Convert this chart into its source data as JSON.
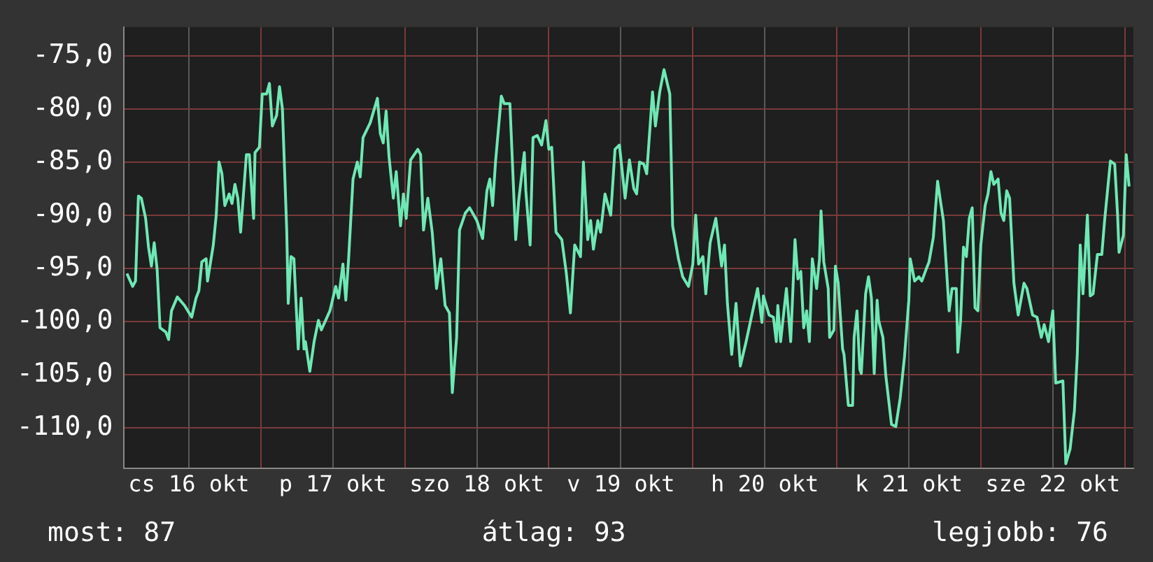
{
  "chart_data": {
    "type": "line",
    "legend": false,
    "grid": true,
    "marker": "none",
    "line_style": "solid",
    "xlim": [
      "--10-16T01:12",
      "--10-23T01:26"
    ],
    "ylim": [
      -113.8,
      -72.3
    ],
    "xticks": [
      {
        "value": "--10-17T00:00",
        "label": null
      },
      {
        "value": "--10-18T00:00",
        "label": null
      },
      {
        "value": "--10-19T00:00",
        "label": null
      },
      {
        "value": "--10-20T00:00",
        "label": null
      },
      {
        "value": "--10-21T00:00",
        "label": null
      },
      {
        "value": "--10-22T00:00",
        "label": null
      },
      {
        "value": "--10-23T00:00",
        "label": null
      },
      {
        "value": "--10-16T12:00",
        "label": "cs 16 okt"
      },
      {
        "value": "--10-17T12:00",
        "label": "p 17 okt"
      },
      {
        "value": "--10-18T12:00",
        "label": "szo 18 okt"
      },
      {
        "value": "--10-19T12:00",
        "label": "v 19 okt"
      },
      {
        "value": "--10-20T12:00",
        "label": "h 20 okt"
      },
      {
        "value": "--10-21T12:00",
        "label": "k 21 okt"
      },
      {
        "value": "--10-22T12:00",
        "label": "sze 22 okt"
      }
    ],
    "yticks": [
      {
        "value": -75,
        "label": "-75,0"
      },
      {
        "value": -80,
        "label": "-80,0"
      },
      {
        "value": -85,
        "label": "-85,0"
      },
      {
        "value": -90,
        "label": "-90,0"
      },
      {
        "value": -95,
        "label": "-95,0"
      },
      {
        "value": -100,
        "label": "-100,0"
      },
      {
        "value": -105,
        "label": "-105,0"
      },
      {
        "value": -110,
        "label": "-110,0"
      }
    ],
    "annotations": [
      "most: 87",
      "átlag: 93",
      "legjobb: 76"
    ],
    "series": [
      {
        "color": "#6ee8b4",
        "x": [
          "--10-16T01:41",
          "--10-16T02:38",
          "--10-16T03:07",
          "--10-16T03:36",
          "--10-16T04:05",
          "--10-16T04:48",
          "--10-16T05:17",
          "--10-16T05:46",
          "--10-16T06:14",
          "--10-16T06:43",
          "--10-16T07:12",
          "--10-16T08:10",
          "--10-16T08:38",
          "--10-16T09:07",
          "--10-16T10:05",
          "--10-16T11:17",
          "--10-16T12:29",
          "--10-16T13:12",
          "--10-16T13:41",
          "--10-16T14:10",
          "--10-16T14:53",
          "--10-16T15:07",
          "--10-16T16:05",
          "--10-16T16:34",
          "--10-16T17:02",
          "--10-16T17:31",
          "--10-16T18:00",
          "--10-16T18:43",
          "--10-16T19:12",
          "--10-16T19:41",
          "--10-16T20:10",
          "--10-16T20:38",
          "--10-16T21:36",
          "--10-16T22:05",
          "--10-16T22:48",
          "--10-16T23:02",
          "--10-16T23:46",
          "--10-17T00:14",
          "--10-17T00:58",
          "--10-17T01:26",
          "--10-17T01:55",
          "--10-17T02:38",
          "--10-17T03:07",
          "--10-17T03:36",
          "--10-17T04:19",
          "--10-17T04:34",
          "--10-17T05:02",
          "--10-17T05:31",
          "--10-17T06:14",
          "--10-17T06:43",
          "--10-17T07:12",
          "--10-17T07:26",
          "--10-17T08:10",
          "--10-17T08:53",
          "--10-17T09:36",
          "--10-17T10:05",
          "--10-17T11:31",
          "--10-17T12:29",
          "--10-17T12:58",
          "--10-17T13:41",
          "--10-17T14:10",
          "--10-17T14:38",
          "--10-17T15:22",
          "--10-17T16:05",
          "--10-17T16:34",
          "--10-17T17:02",
          "--10-17T18:14",
          "--10-17T19:26",
          "--10-17T19:55",
          "--10-17T20:24",
          "--10-17T20:53",
          "--10-17T21:22",
          "--10-17T22:05",
          "--10-17T22:34",
          "--10-17T23:17",
          "--10-17T23:46",
          "--10-18T00:14",
          "--10-18T00:58",
          "--10-18T02:10",
          "--10-18T02:38",
          "--10-18T03:07",
          "--10-18T03:50",
          "--10-18T04:34",
          "--10-18T05:17",
          "--10-18T06:00",
          "--10-18T06:43",
          "--10-18T07:26",
          "--10-18T07:55",
          "--10-18T08:38",
          "--10-18T09:07",
          "--10-18T10:05",
          "--10-18T10:48",
          "--10-18T12:00",
          "--10-18T12:58",
          "--10-18T13:41",
          "--10-18T14:10",
          "--10-18T14:38",
          "--10-18T15:07",
          "--10-18T16:05",
          "--10-18T16:34",
          "--10-18T17:31",
          "--10-18T18:00",
          "--10-18T18:29",
          "--10-18T18:58",
          "--10-18T19:55",
          "--10-18T20:10",
          "--10-18T20:53",
          "--10-18T21:22",
          "--10-18T22:05",
          "--10-18T22:48",
          "--10-18T23:31",
          "--10-19T00:00",
          "--10-19T00:29",
          "--10-19T01:12",
          "--10-19T02:10",
          "--10-19T02:53",
          "--10-19T03:36",
          "--10-19T04:19",
          "--10-19T05:17",
          "--10-19T05:46",
          "--10-19T06:29",
          "--10-19T06:58",
          "--10-19T07:26",
          "--10-19T08:10",
          "--10-19T08:38",
          "--10-19T09:22",
          "--10-19T10:19",
          "--10-19T11:02",
          "--10-19T11:46",
          "--10-19T12:43",
          "--10-19T13:26",
          "--10-19T14:10",
          "--10-19T14:38",
          "--10-19T15:07",
          "--10-19T15:50",
          "--10-19T16:19",
          "--10-19T17:17",
          "--10-19T17:46",
          "--10-19T18:29",
          "--10-19T19:12",
          "--10-19T20:10",
          "--10-19T20:38",
          "--10-19T21:36",
          "--10-19T22:19",
          "--10-19T23:17",
          "--10-20T00:00",
          "--10-20T00:29",
          "--10-20T00:58",
          "--10-20T01:41",
          "--10-20T02:10",
          "--10-20T02:53",
          "--10-20T03:50",
          "--10-20T04:48",
          "--10-20T05:17",
          "--10-20T05:46",
          "--10-20T06:29",
          "--10-20T07:12",
          "--10-20T07:55",
          "--10-20T08:53",
          "--10-20T09:50",
          "--10-20T10:48",
          "--10-20T11:31",
          "--10-20T11:46",
          "--10-20T12:43",
          "--10-20T13:26",
          "--10-20T13:55",
          "--10-20T14:10",
          "--10-20T14:38",
          "--10-20T15:36",
          "--10-20T16:19",
          "--10-20T17:02",
          "--10-20T17:31",
          "--10-20T18:00",
          "--10-20T18:29",
          "--10-20T18:58",
          "--10-20T19:26",
          "--10-20T19:55",
          "--10-20T20:38",
          "--10-20T21:07",
          "--10-20T21:22",
          "--10-20T21:50",
          "--10-20T22:34",
          "--10-20T22:48",
          "--10-20T23:31",
          "--10-20T23:46",
          "--10-21T00:14",
          "--10-21T00:58",
          "--10-21T01:12",
          "--10-21T01:55",
          "--10-21T02:38",
          "--10-21T02:53",
          "--10-21T03:22",
          "--10-21T03:50",
          "--10-21T04:05",
          "--10-21T04:48",
          "--10-21T05:17",
          "--10-21T05:46",
          "--10-21T06:14",
          "--10-21T06:43",
          "--10-21T06:58",
          "--10-21T07:41",
          "--10-21T08:10",
          "--10-21T09:07",
          "--10-21T09:50",
          "--10-21T10:34",
          "--10-21T11:17",
          "--10-21T12:00",
          "--10-21T12:14",
          "--10-21T12:58",
          "--10-21T13:41",
          "--10-21T14:10",
          "--10-21T14:53",
          "--10-21T15:22",
          "--10-21T16:05",
          "--10-21T16:48",
          "--10-21T17:17",
          "--10-21T17:46",
          "--10-21T18:43",
          "--10-21T19:12",
          "--10-21T19:55",
          "--10-21T20:10",
          "--10-21T20:38",
          "--10-21T21:07",
          "--10-21T21:36",
          "--10-21T22:05",
          "--10-21T22:34",
          "--10-21T23:02",
          "--10-21T23:31",
          "--10-22T00:00",
          "--10-22T00:43",
          "--10-22T01:12",
          "--10-22T01:41",
          "--10-22T02:10",
          "--10-22T02:53",
          "--10-22T03:22",
          "--10-22T03:50",
          "--10-22T04:19",
          "--10-22T04:48",
          "--10-22T05:31",
          "--10-22T06:14",
          "--10-22T07:12",
          "--10-22T07:41",
          "--10-22T08:38",
          "--10-22T09:22",
          "--10-22T10:05",
          "--10-22T10:34",
          "--10-22T11:17",
          "--10-22T12:00",
          "--10-22T12:29",
          "--10-22T13:41",
          "--10-22T14:10",
          "--10-22T14:53",
          "--10-22T15:36",
          "--10-22T16:05",
          "--10-22T16:34",
          "--10-22T17:02",
          "--10-22T17:46",
          "--10-22T18:14",
          "--10-22T18:43",
          "--10-22T19:26",
          "--10-22T20:10",
          "--10-22T20:38",
          "--10-22T21:36",
          "--10-22T22:19",
          "--10-22T22:48",
          "--10-22T23:02",
          "--10-22T23:46",
          "--10-23T00:14",
          "--10-23T00:43"
        ],
        "values": [
          -95.5,
          -96.7,
          -96.2,
          -88.2,
          -88.4,
          -90.3,
          -93.0,
          -94.8,
          -92.6,
          -95.1,
          -100.6,
          -101.0,
          -101.7,
          -99.0,
          -97.7,
          -98.5,
          -99.6,
          -97.8,
          -97.1,
          -94.4,
          -94.1,
          -96.2,
          -92.8,
          -90.0,
          -85.0,
          -86.1,
          -89.1,
          -88.0,
          -88.9,
          -87.1,
          -88.4,
          -91.6,
          -84.3,
          -84.3,
          -90.3,
          -84.1,
          -83.6,
          -78.6,
          -78.6,
          -77.6,
          -81.6,
          -80.6,
          -77.9,
          -80.0,
          -91.4,
          -98.3,
          -93.9,
          -94.1,
          -102.6,
          -97.8,
          -102.6,
          -101.9,
          -104.7,
          -101.9,
          -99.9,
          -100.8,
          -99.0,
          -96.7,
          -97.8,
          -94.6,
          -98.0,
          -94.1,
          -86.6,
          -85.0,
          -86.4,
          -82.7,
          -81.3,
          -79.0,
          -82.3,
          -83.2,
          -80.2,
          -84.5,
          -88.4,
          -85.9,
          -91.0,
          -88.0,
          -90.3,
          -84.8,
          -83.8,
          -84.3,
          -91.4,
          -88.4,
          -91.6,
          -96.9,
          -94.1,
          -98.5,
          -99.2,
          -106.7,
          -101.5,
          -91.4,
          -89.8,
          -89.3,
          -90.5,
          -92.2,
          -87.7,
          -86.6,
          -89.1,
          -85.0,
          -78.8,
          -79.5,
          -79.5,
          -85.9,
          -92.3,
          -88.7,
          -84.1,
          -87.7,
          -92.8,
          -82.7,
          -82.5,
          -83.4,
          -81.1,
          -83.8,
          -83.6,
          -91.6,
          -92.3,
          -95.3,
          -99.2,
          -92.8,
          -93.9,
          -85.0,
          -92.3,
          -90.5,
          -93.2,
          -90.5,
          -91.6,
          -88.0,
          -90.0,
          -83.8,
          -83.4,
          -88.4,
          -84.8,
          -87.5,
          -88.0,
          -85.0,
          -85.2,
          -86.1,
          -78.4,
          -81.6,
          -78.4,
          -76.3,
          -78.6,
          -91.0,
          -94.1,
          -95.8,
          -96.7,
          -94.6,
          -90.0,
          -94.6,
          -93.9,
          -97.4,
          -92.6,
          -90.3,
          -94.8,
          -92.8,
          -98.3,
          -103.1,
          -98.3,
          -104.2,
          -101.9,
          -99.4,
          -96.9,
          -100.1,
          -97.6,
          -99.4,
          -99.6,
          -101.9,
          -98.5,
          -101.9,
          -96.9,
          -101.9,
          -92.3,
          -96.0,
          -95.3,
          -100.6,
          -99.0,
          -101.9,
          -94.1,
          -96.9,
          -94.1,
          -89.6,
          -94.4,
          -96.9,
          -101.5,
          -100.8,
          -94.8,
          -96.4,
          -102.6,
          -103.1,
          -107.9,
          -107.9,
          -101.5,
          -99.0,
          -104.5,
          -104.9,
          -97.4,
          -95.8,
          -97.8,
          -104.9,
          -98.0,
          -99.9,
          -101.5,
          -105.1,
          -109.7,
          -109.9,
          -107.2,
          -103.3,
          -98.0,
          -94.1,
          -96.2,
          -95.8,
          -96.2,
          -95.1,
          -94.4,
          -92.1,
          -86.8,
          -88.7,
          -90.5,
          -99.0,
          -96.9,
          -96.9,
          -102.9,
          -99.9,
          -93.0,
          -93.9,
          -90.3,
          -89.3,
          -98.7,
          -99.0,
          -92.8,
          -89.1,
          -88.0,
          -85.9,
          -87.1,
          -86.6,
          -89.8,
          -90.5,
          -87.7,
          -88.4,
          -96.4,
          -99.4,
          -96.4,
          -96.9,
          -99.4,
          -99.6,
          -101.5,
          -100.3,
          -101.9,
          -99.0,
          -105.8,
          -105.6,
          -113.4,
          -112.0,
          -108.4,
          -103.1,
          -92.8,
          -97.4,
          -90.0,
          -97.6,
          -97.4,
          -93.7,
          -93.7,
          -90.5,
          -84.9,
          -85.2,
          -90.0,
          -93.5,
          -91.9,
          -84.3,
          -87.3
        ]
      }
    ]
  }
}
